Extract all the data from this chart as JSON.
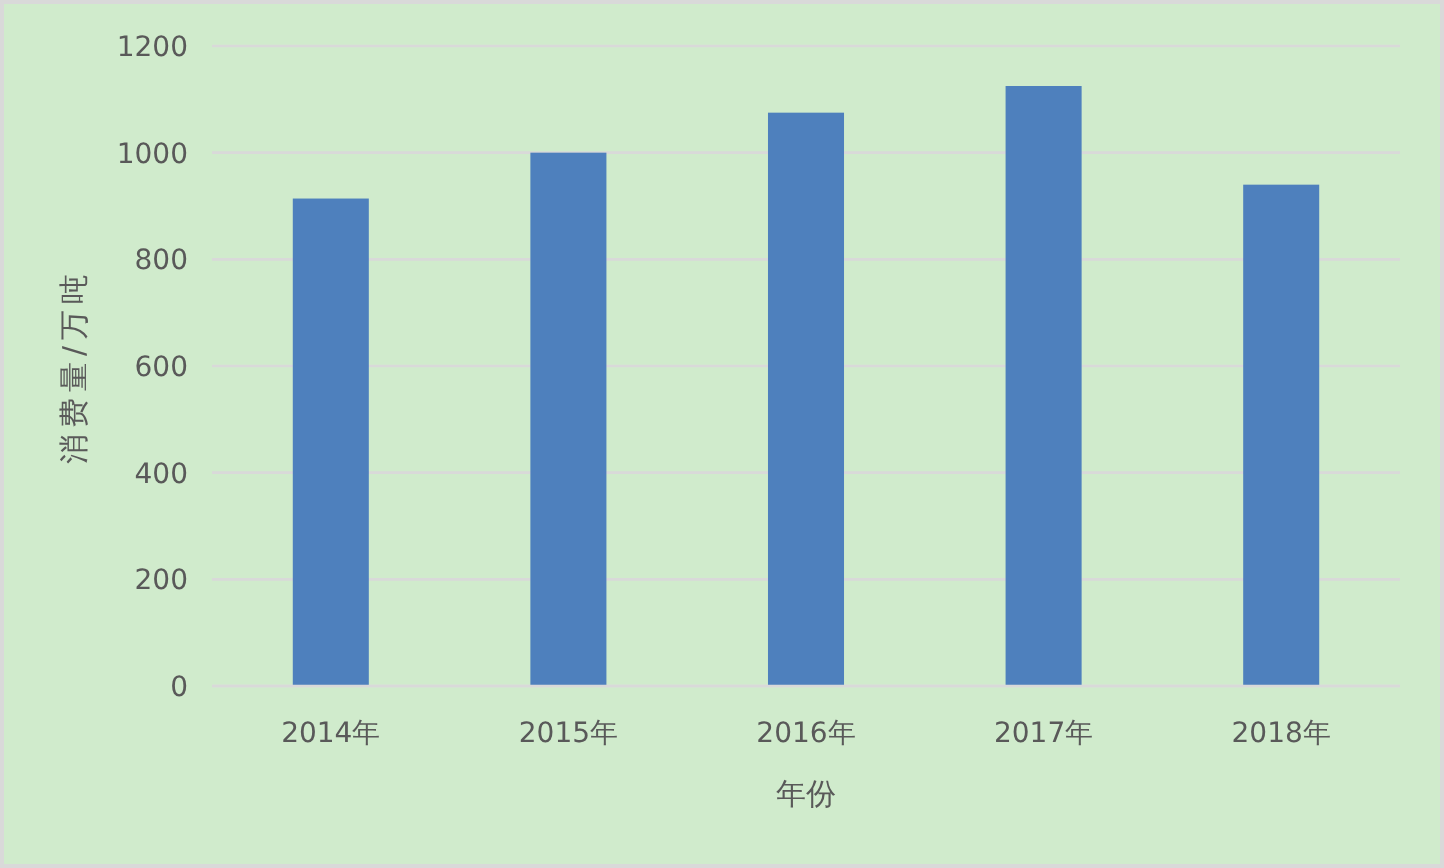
{
  "chart_data": {
    "type": "bar",
    "xlabel": "年份",
    "ylabel": "消费量/万吨",
    "categories": [
      "2014年",
      "2015年",
      "2016年",
      "2017年",
      "2018年"
    ],
    "series": [
      {
        "color": "#4e80bd",
        "values": [
          914,
          1000,
          1075,
          1125,
          940
        ]
      }
    ],
    "ylim": [
      0,
      1200
    ],
    "yticks": [
      0,
      200,
      400,
      600,
      800,
      1000,
      1200
    ],
    "grid": "y"
  }
}
